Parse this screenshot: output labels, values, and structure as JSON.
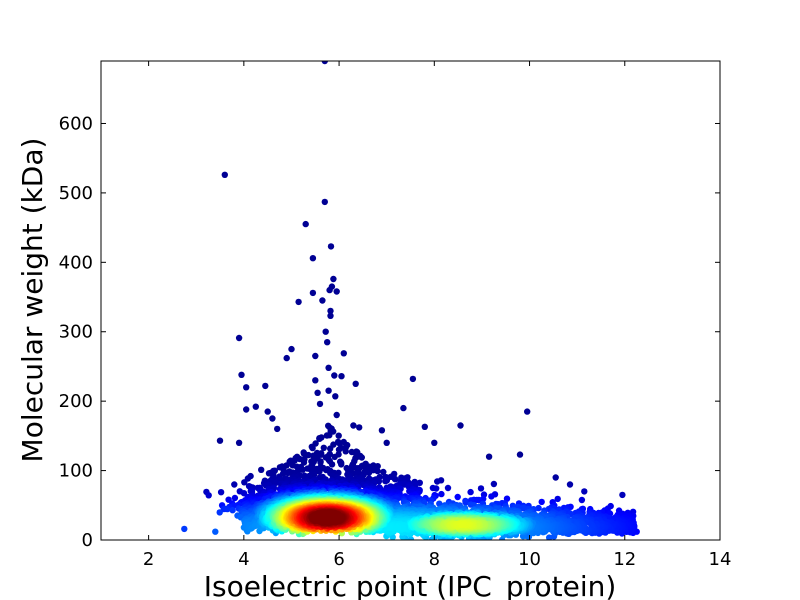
{
  "chart_data": {
    "type": "scatter",
    "title": "",
    "xlabel": "Isoelectric point (IPC_protein)",
    "ylabel": "Molecular weight (kDa)",
    "xlim": [
      1,
      14
    ],
    "ylim": [
      0,
      690
    ],
    "xticks": [
      2,
      4,
      6,
      8,
      10,
      12,
      14
    ],
    "yticks": [
      0,
      100,
      200,
      300,
      400,
      500,
      600
    ],
    "grid": false,
    "legend": "none",
    "colormap": "jet (point density: blue = low, red = high)",
    "density_peak": {
      "x": 5.75,
      "y": 32
    },
    "outliers": [
      {
        "x": 2.75,
        "y": 16
      },
      {
        "x": 3.4,
        "y": 12
      },
      {
        "x": 3.5,
        "y": 143
      },
      {
        "x": 3.6,
        "y": 526
      },
      {
        "x": 3.8,
        "y": 80
      },
      {
        "x": 3.9,
        "y": 291
      },
      {
        "x": 3.95,
        "y": 238
      },
      {
        "x": 3.9,
        "y": 140
      },
      {
        "x": 4.05,
        "y": 220
      },
      {
        "x": 4.05,
        "y": 188
      },
      {
        "x": 4.25,
        "y": 192
      },
      {
        "x": 4.45,
        "y": 222
      },
      {
        "x": 4.5,
        "y": 185
      },
      {
        "x": 4.6,
        "y": 175
      },
      {
        "x": 4.7,
        "y": 160
      },
      {
        "x": 4.9,
        "y": 262
      },
      {
        "x": 5.0,
        "y": 275
      },
      {
        "x": 5.15,
        "y": 343
      },
      {
        "x": 5.3,
        "y": 455
      },
      {
        "x": 5.45,
        "y": 406
      },
      {
        "x": 5.45,
        "y": 356
      },
      {
        "x": 5.5,
        "y": 265
      },
      {
        "x": 5.5,
        "y": 230
      },
      {
        "x": 5.55,
        "y": 212
      },
      {
        "x": 5.6,
        "y": 196
      },
      {
        "x": 5.65,
        "y": 345
      },
      {
        "x": 5.7,
        "y": 487
      },
      {
        "x": 5.7,
        "y": 690
      },
      {
        "x": 5.72,
        "y": 300
      },
      {
        "x": 5.75,
        "y": 285
      },
      {
        "x": 5.78,
        "y": 248
      },
      {
        "x": 5.78,
        "y": 215
      },
      {
        "x": 5.8,
        "y": 360
      },
      {
        "x": 5.82,
        "y": 330
      },
      {
        "x": 5.82,
        "y": 323
      },
      {
        "x": 5.83,
        "y": 423
      },
      {
        "x": 5.85,
        "y": 365
      },
      {
        "x": 5.88,
        "y": 376
      },
      {
        "x": 5.9,
        "y": 237
      },
      {
        "x": 5.92,
        "y": 207
      },
      {
        "x": 5.95,
        "y": 358
      },
      {
        "x": 5.95,
        "y": 180
      },
      {
        "x": 6.1,
        "y": 269
      },
      {
        "x": 6.05,
        "y": 236
      },
      {
        "x": 6.35,
        "y": 225
      },
      {
        "x": 6.3,
        "y": 165
      },
      {
        "x": 6.9,
        "y": 158
      },
      {
        "x": 7.0,
        "y": 140
      },
      {
        "x": 7.35,
        "y": 190
      },
      {
        "x": 7.55,
        "y": 232
      },
      {
        "x": 7.8,
        "y": 163
      },
      {
        "x": 8.0,
        "y": 140
      },
      {
        "x": 8.55,
        "y": 165
      },
      {
        "x": 9.15,
        "y": 120
      },
      {
        "x": 9.8,
        "y": 123
      },
      {
        "x": 9.95,
        "y": 185
      },
      {
        "x": 10.55,
        "y": 90
      },
      {
        "x": 10.85,
        "y": 80
      },
      {
        "x": 11.15,
        "y": 70
      },
      {
        "x": 11.95,
        "y": 65
      },
      {
        "x": 12.25,
        "y": 12
      },
      {
        "x": 12.2,
        "y": 20
      }
    ]
  }
}
